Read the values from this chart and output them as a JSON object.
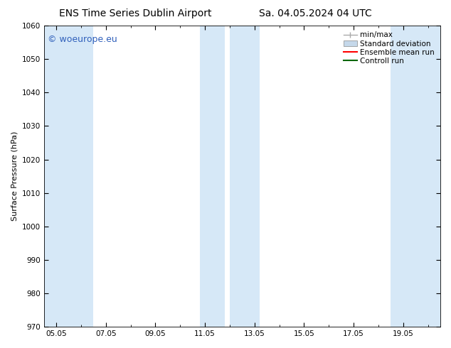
{
  "title_left": "ENS Time Series Dublin Airport",
  "title_right": "Sa. 04.05.2024 04 UTC",
  "ylabel": "Surface Pressure (hPa)",
  "ylim": [
    970,
    1060
  ],
  "yticks": [
    970,
    980,
    990,
    1000,
    1010,
    1020,
    1030,
    1040,
    1050,
    1060
  ],
  "xlim_num": [
    4.5,
    20.5
  ],
  "xtick_labels": [
    "05.05",
    "07.05",
    "09.05",
    "11.05",
    "13.05",
    "15.05",
    "17.05",
    "19.05"
  ],
  "xtick_positions": [
    5.0,
    7.0,
    9.0,
    11.0,
    13.0,
    15.0,
    17.0,
    19.0
  ],
  "shaded_bands": [
    {
      "x_start": 4.5,
      "x_end": 5.5,
      "color": "#d6e8f7"
    },
    {
      "x_start": 5.5,
      "x_end": 6.5,
      "color": "#d6e8f7"
    },
    {
      "x_start": 10.8,
      "x_end": 11.8,
      "color": "#d6e8f7"
    },
    {
      "x_start": 12.0,
      "x_end": 13.2,
      "color": "#d6e8f7"
    },
    {
      "x_start": 18.5,
      "x_end": 19.5,
      "color": "#d6e8f7"
    },
    {
      "x_start": 19.5,
      "x_end": 20.5,
      "color": "#d6e8f7"
    }
  ],
  "background_color": "#ffffff",
  "plot_bg_color": "#ffffff",
  "watermark_text": "© woeurope.eu",
  "watermark_color": "#3060bb",
  "legend_items": [
    {
      "label": "min/max",
      "color": "#aaaaaa",
      "type": "errorbar"
    },
    {
      "label": "Standard deviation",
      "color": "#c5d8ea",
      "type": "fill"
    },
    {
      "label": "Ensemble mean run",
      "color": "#ff0000",
      "type": "line"
    },
    {
      "label": "Controll run",
      "color": "#006600",
      "type": "line"
    }
  ],
  "font_size_title": 10,
  "font_size_axis": 8,
  "font_size_ticks": 7.5,
  "font_size_legend": 7.5,
  "font_size_watermark": 9
}
